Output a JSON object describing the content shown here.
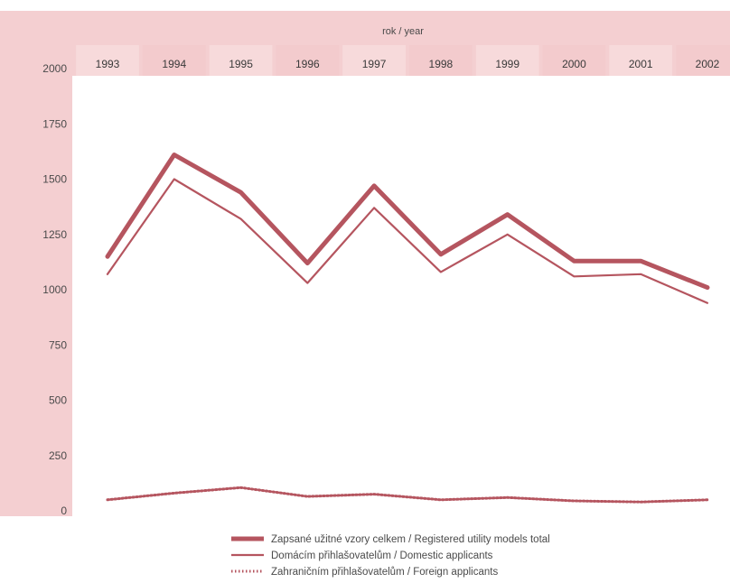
{
  "chart_data": {
    "type": "line",
    "title": "",
    "xlabel": "rok / year",
    "ylabel": "",
    "ylim": [
      0,
      2000
    ],
    "yticks": [
      0,
      250,
      500,
      750,
      1000,
      1250,
      1500,
      1750,
      2000
    ],
    "categories": [
      "1993",
      "1994",
      "1995",
      "1996",
      "1997",
      "1998",
      "1999",
      "2000",
      "2001",
      "2002"
    ],
    "grid": false,
    "legend_position": "bottom",
    "series": [
      {
        "name": "Zapsané užitné vzory celkem / Registered utility models total",
        "values": [
          1150,
          1610,
          1440,
          1120,
          1470,
          1160,
          1340,
          1130,
          1130,
          1010
        ],
        "color": "#b5555f",
        "style": "thick"
      },
      {
        "name": "Domácím přihlašovatelům / Domestic applicants",
        "values": [
          1070,
          1500,
          1320,
          1030,
          1370,
          1080,
          1250,
          1060,
          1070,
          940
        ],
        "color": "#b5555f",
        "style": "thin"
      },
      {
        "name": "Zahraničním přihlašovatelům / Foreign applicants",
        "values": [
          50,
          80,
          105,
          65,
          75,
          50,
          60,
          45,
          40,
          50
        ],
        "color": "#b5555f",
        "style": "dotted"
      }
    ]
  },
  "colors": {
    "band": "#f2c6c8",
    "band_line": "#e8a9ad",
    "series": "#b5555f"
  }
}
